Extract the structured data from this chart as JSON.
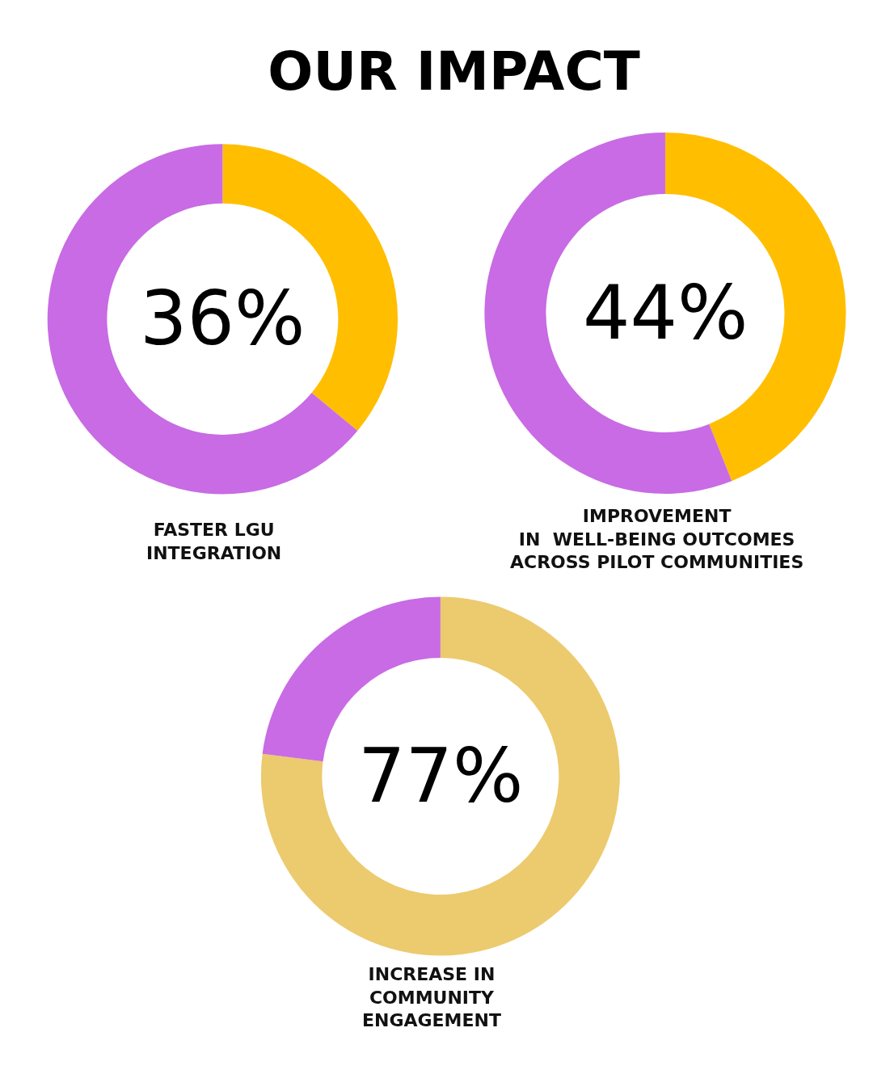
{
  "chart_data": [
    {
      "type": "donut",
      "title": "OUR IMPACT",
      "categories": [
        null,
        null
      ],
      "values": [
        36,
        64
      ],
      "colors": [
        "#ffbe00",
        "#c86be4"
      ],
      "annotations": [
        "36%",
        "FASTER LGU\nINTEGRATION"
      ]
    },
    {
      "type": "donut",
      "categories": [
        null,
        null
      ],
      "values": [
        44,
        56
      ],
      "colors": [
        "#ffbe00",
        "#c86be4"
      ],
      "annotations": [
        "44%",
        "IMPROVEMENT\nIN  WELL-BEING OUTCOMES\nACROSS PILOT COMMUNITIES"
      ]
    },
    {
      "type": "donut",
      "categories": [
        null,
        null
      ],
      "values": [
        77,
        23
      ],
      "colors": [
        "#ecca6e",
        "#c86be4"
      ],
      "annotations": [
        "77%",
        "INCREASE IN\nCOMMUNITY\nENGAGEMENT"
      ]
    }
  ]
}
